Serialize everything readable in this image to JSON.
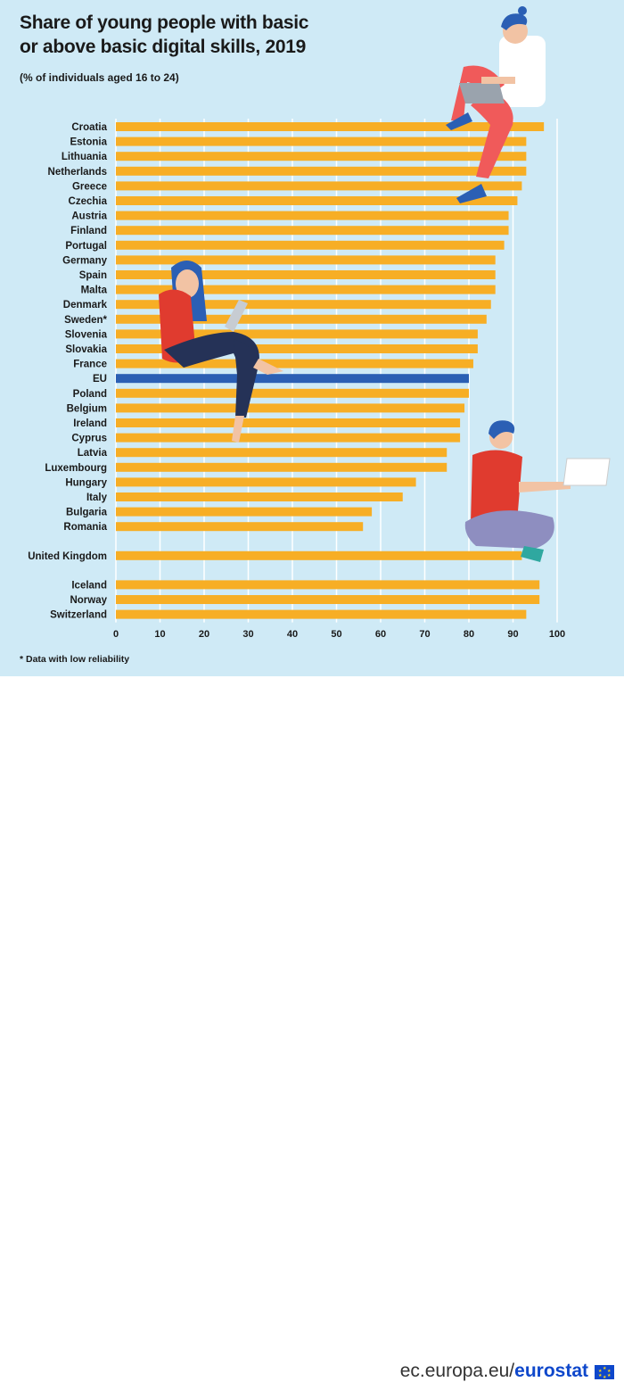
{
  "title_line1": "Share of young people with basic",
  "title_line2": "or above basic digital skills, 2019",
  "subtitle": "(% of individuals aged 16 to 24)",
  "footnote": "* Data with low reliability",
  "brand_prefix": "ec.europa.eu/",
  "brand_name": "eurostat",
  "colors": {
    "bar": "#f7ae25",
    "eu_bar": "#2b5fb4",
    "background": "#cfeaf6",
    "gridline": "#ffffff"
  },
  "chart_data": {
    "type": "bar",
    "orientation": "horizontal",
    "xlim": [
      0,
      100
    ],
    "xticks": [
      0,
      10,
      20,
      30,
      40,
      50,
      60,
      70,
      80,
      90,
      100
    ],
    "grid": true,
    "groups": [
      {
        "categories": [
          "Croatia",
          "Estonia",
          "Lithuania",
          "Netherlands",
          "Greece",
          "Czechia",
          "Austria",
          "Finland",
          "Portugal",
          "Germany",
          "Spain",
          "Malta",
          "Denmark",
          "Sweden*",
          "Slovenia",
          "Slovakia",
          "France",
          "EU",
          "Poland",
          "Belgium",
          "Ireland",
          "Cyprus",
          "Latvia",
          "Luxembourg",
          "Hungary",
          "Italy",
          "Bulgaria",
          "Romania"
        ],
        "values": [
          97,
          93,
          93,
          93,
          92,
          91,
          89,
          89,
          88,
          86,
          86,
          86,
          85,
          84,
          82,
          82,
          81,
          80,
          80,
          79,
          78,
          78,
          75,
          75,
          68,
          65,
          58,
          56
        ]
      },
      {
        "categories": [
          "United Kingdom"
        ],
        "values": [
          92
        ]
      },
      {
        "categories": [
          "Iceland",
          "Norway",
          "Switzerland"
        ],
        "values": [
          96,
          96,
          93
        ]
      }
    ],
    "highlight": "EU"
  }
}
